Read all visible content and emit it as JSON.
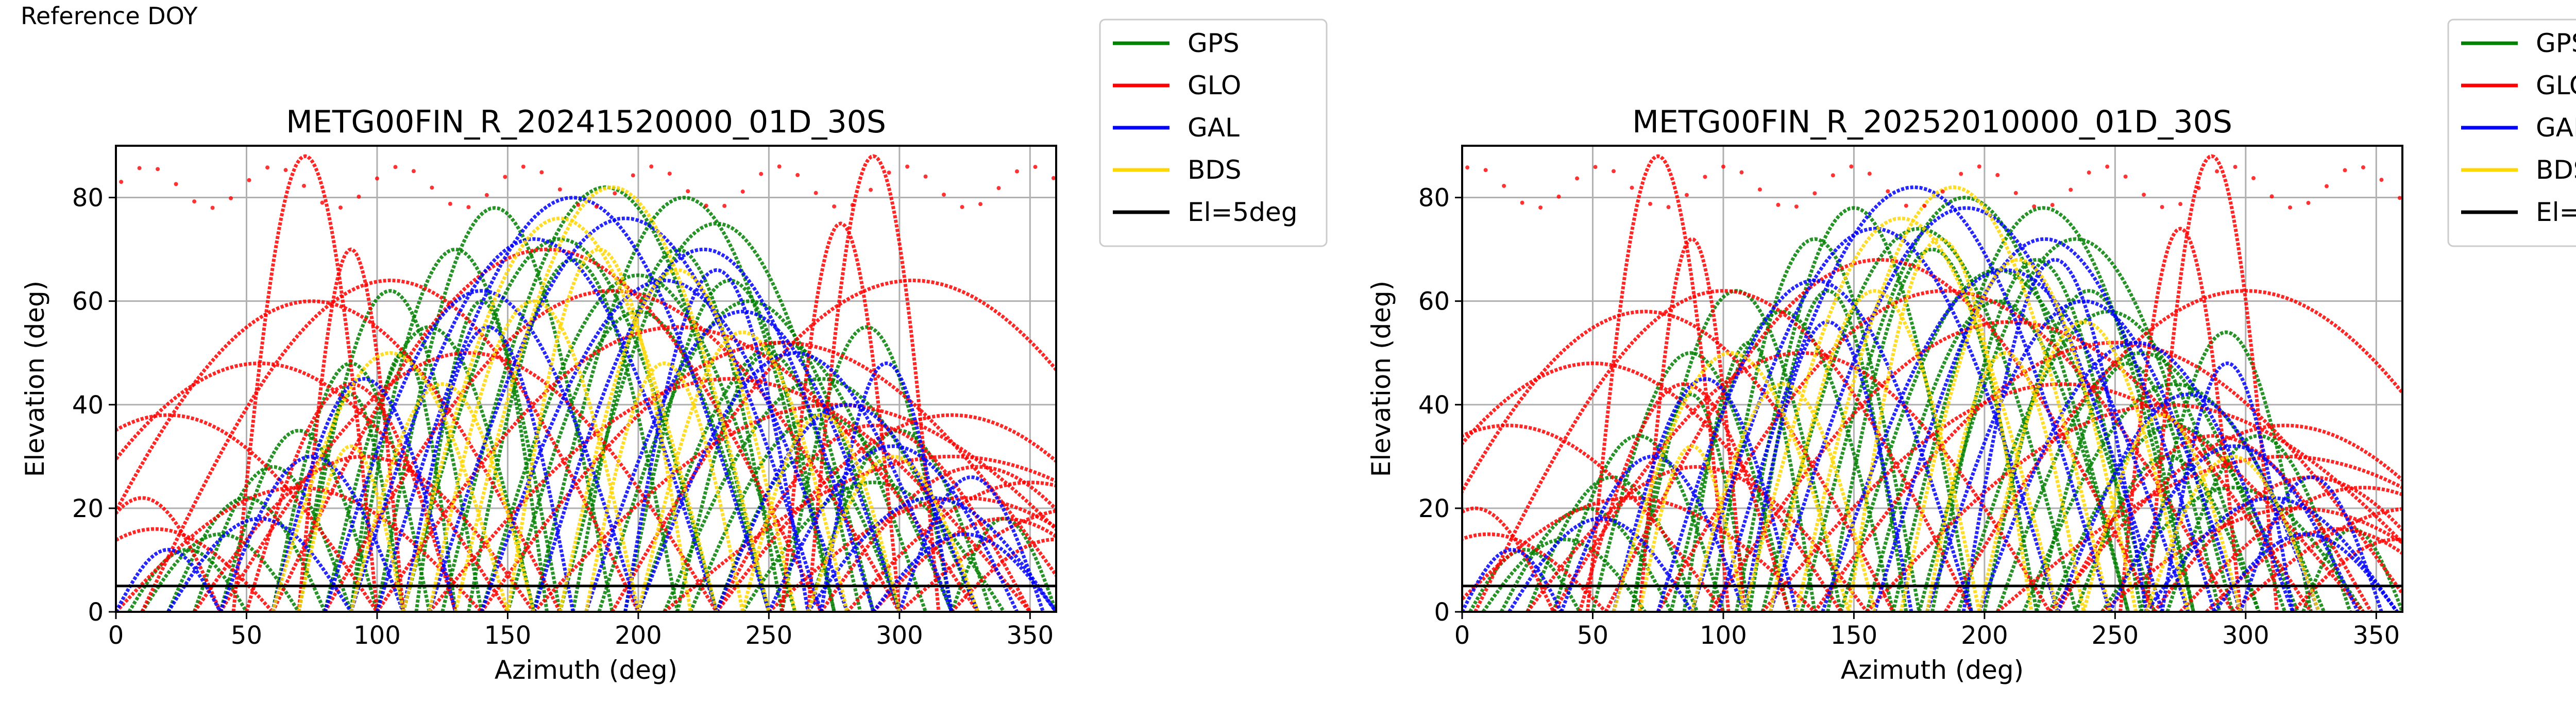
{
  "header": {
    "text": "Reference DOY"
  },
  "legend": {
    "entries": [
      {
        "label": "GPS",
        "color": "#008000"
      },
      {
        "label": "GLO",
        "color": "#ff0000"
      },
      {
        "label": "GAL",
        "color": "#0000ff"
      },
      {
        "label": "BDS",
        "color": "#ffd700"
      },
      {
        "label": "El=5deg",
        "color": "#000000"
      }
    ]
  },
  "chart_data": [
    {
      "type": "scatter",
      "title": "METG00FIN_R_20241520000_01D_30S",
      "xlabel": "Azimuth (deg)",
      "ylabel": "Elevation (deg)",
      "xlim": [
        0,
        360
      ],
      "ylim": [
        0,
        90
      ],
      "xticks": [
        "0",
        "50",
        "100",
        "150",
        "200",
        "250",
        "300",
        "350"
      ],
      "yticks": [
        "0",
        "20",
        "40",
        "60",
        "80"
      ],
      "grid": true,
      "legend_position": "outside-top-right",
      "reference_line": {
        "label": "El=5deg",
        "y": 5
      },
      "series": [
        {
          "name": "GPS",
          "color": "#008000",
          "arcs": [
            [
              60,
              120,
              48
            ],
            [
              70,
              140,
              62
            ],
            [
              80,
              160,
              55
            ],
            [
              90,
              170,
              70
            ],
            [
              100,
              190,
              78
            ],
            [
              110,
              230,
              72
            ],
            [
              125,
              250,
              82
            ],
            [
              140,
              260,
              65
            ],
            [
              150,
              250,
              58
            ],
            [
              160,
              275,
              80
            ],
            [
              170,
              290,
              75
            ],
            [
              185,
              300,
              60
            ],
            [
              200,
              310,
              52
            ],
            [
              210,
              330,
              45
            ],
            [
              220,
              320,
              38
            ],
            [
              230,
              300,
              30
            ],
            [
              240,
              340,
              25
            ],
            [
              40,
              100,
              35
            ],
            [
              30,
              90,
              28
            ],
            [
              20,
              80,
              22
            ],
            [
              10,
              70,
              15
            ],
            [
              255,
              320,
              55
            ],
            [
              265,
              335,
              35
            ],
            [
              70,
              110,
              42
            ],
            [
              90,
              130,
              50
            ],
            [
              115,
              165,
              60
            ],
            [
              135,
              215,
              68
            ],
            [
              175,
              255,
              70
            ],
            [
              195,
              275,
              64
            ],
            [
              215,
              285,
              50
            ],
            [
              5,
              50,
              12
            ],
            [
              320,
              360,
              18
            ]
          ]
        },
        {
          "name": "GLO",
          "color": "#ff0000",
          "arcs": [
            [
              -60,
              100,
              38
            ],
            [
              -40,
              150,
              48
            ],
            [
              -20,
              170,
              60
            ],
            [
              0,
              140,
              24
            ],
            [
              10,
              200,
              64
            ],
            [
              30,
              160,
              30
            ],
            [
              40,
              230,
              50
            ],
            [
              60,
              270,
              70
            ],
            [
              80,
              300,
              62
            ],
            [
              100,
              330,
              55
            ],
            [
              120,
              350,
              45
            ],
            [
              140,
              370,
              52
            ],
            [
              160,
              390,
              40
            ],
            [
              190,
              420,
              64
            ],
            [
              210,
              430,
              30
            ],
            [
              230,
              410,
              38
            ],
            [
              250,
              400,
              22
            ],
            [
              270,
              390,
              28
            ],
            [
              290,
              390,
              18
            ],
            [
              280,
              420,
              25
            ],
            [
              300,
              440,
              20
            ],
            [
              45,
              100,
              88
            ],
            [
              265,
              315,
              88
            ],
            [
              -20,
              40,
              22
            ],
            [
              50,
              130,
              44
            ],
            [
              70,
              110,
              70
            ],
            [
              255,
              300,
              75
            ],
            [
              230,
              350,
              36
            ],
            [
              320,
              400,
              14
            ],
            [
              -30,
              60,
              16
            ]
          ]
        },
        {
          "name": "GAL",
          "color": "#0000ff",
          "arcs": [
            [
              80,
              200,
              62
            ],
            [
              90,
              230,
              72
            ],
            [
              100,
              250,
              80
            ],
            [
              120,
              270,
              76
            ],
            [
              140,
              280,
              64
            ],
            [
              160,
              290,
              70
            ],
            [
              180,
              300,
              58
            ],
            [
              200,
              320,
              50
            ],
            [
              230,
              330,
              40
            ],
            [
              250,
              345,
              32
            ],
            [
              265,
              360,
              22
            ],
            [
              290,
              360,
              15
            ],
            [
              40,
              110,
              30
            ],
            [
              20,
              90,
              18
            ],
            [
              60,
              130,
              45
            ],
            [
              110,
              175,
              55
            ],
            [
              195,
              265,
              66
            ],
            [
              270,
              320,
              48
            ],
            [
              300,
              355,
              26
            ],
            [
              0,
              40,
              12
            ]
          ]
        },
        {
          "name": "BDS",
          "color": "#ffd700",
          "arcs": [
            [
              110,
              230,
              76
            ],
            [
              130,
              250,
              82
            ],
            [
              150,
              220,
              70
            ],
            [
              170,
              260,
              66
            ],
            [
              60,
              150,
              50
            ],
            [
              200,
              280,
              54
            ],
            [
              90,
              160,
              44
            ],
            [
              240,
              300,
              38
            ],
            [
              120,
              200,
              60
            ],
            [
              180,
              240,
              48
            ],
            [
              265,
              330,
              30
            ],
            [
              70,
              110,
              32
            ]
          ]
        }
      ]
    },
    {
      "type": "scatter",
      "title": "METG00FIN_R_20252010000_01D_30S",
      "xlabel": "Azimuth (deg)",
      "ylabel": "Elevation (deg)",
      "xlim": [
        0,
        360
      ],
      "ylim": [
        0,
        90
      ],
      "xticks": [
        "0",
        "50",
        "100",
        "150",
        "200",
        "250",
        "300",
        "350"
      ],
      "yticks": [
        "0",
        "20",
        "40",
        "60",
        "80"
      ],
      "grid": true,
      "legend_position": "outside-top-right",
      "reference_line": {
        "label": "El=5deg",
        "y": 5
      },
      "series": [
        {
          "name": "GPS",
          "color": "#008000",
          "arcs": [
            [
              50,
              125,
              50
            ],
            [
              65,
              145,
              62
            ],
            [
              80,
              165,
              58
            ],
            [
              95,
              175,
              72
            ],
            [
              105,
              195,
              78
            ],
            [
              115,
              235,
              74
            ],
            [
              130,
              255,
              80
            ],
            [
              145,
              265,
              66
            ],
            [
              155,
              255,
              60
            ],
            [
              165,
              280,
              78
            ],
            [
              175,
              295,
              72
            ],
            [
              190,
              305,
              58
            ],
            [
              205,
              315,
              50
            ],
            [
              215,
              330,
              44
            ],
            [
              225,
              320,
              36
            ],
            [
              235,
              305,
              30
            ],
            [
              245,
              345,
              24
            ],
            [
              35,
              100,
              34
            ],
            [
              25,
              90,
              26
            ],
            [
              15,
              80,
              20
            ],
            [
              8,
              70,
              14
            ],
            [
              260,
              325,
              54
            ],
            [
              270,
              340,
              34
            ],
            [
              65,
              110,
              42
            ],
            [
              85,
              135,
              52
            ],
            [
              110,
              170,
              62
            ],
            [
              140,
              220,
              70
            ],
            [
              180,
              260,
              68
            ],
            [
              200,
              280,
              62
            ],
            [
              220,
              290,
              48
            ],
            [
              3,
              45,
              12
            ],
            [
              322,
              360,
              16
            ]
          ]
        },
        {
          "name": "GLO",
          "color": "#ff0000",
          "arcs": [
            [
              -65,
              100,
              36
            ],
            [
              -45,
              145,
              48
            ],
            [
              -25,
              165,
              58
            ],
            [
              -5,
              135,
              22
            ],
            [
              5,
              195,
              62
            ],
            [
              25,
              155,
              28
            ],
            [
              35,
              225,
              50
            ],
            [
              55,
              265,
              68
            ],
            [
              75,
              295,
              62
            ],
            [
              95,
              325,
              56
            ],
            [
              115,
              345,
              44
            ],
            [
              135,
              365,
              52
            ],
            [
              155,
              385,
              40
            ],
            [
              185,
              415,
              62
            ],
            [
              205,
              425,
              30
            ],
            [
              225,
              405,
              36
            ],
            [
              245,
              395,
              20
            ],
            [
              265,
              385,
              26
            ],
            [
              285,
              385,
              16
            ],
            [
              275,
              415,
              24
            ],
            [
              295,
              435,
              20
            ],
            [
              48,
              102,
              88
            ],
            [
              262,
              312,
              88
            ],
            [
              -25,
              35,
              20
            ],
            [
              45,
              125,
              44
            ],
            [
              68,
              108,
              72
            ],
            [
              252,
              298,
              74
            ],
            [
              228,
              348,
              34
            ],
            [
              318,
              398,
              14
            ],
            [
              -35,
              55,
              15
            ]
          ]
        },
        {
          "name": "GAL",
          "color": "#0000ff",
          "arcs": [
            [
              75,
              195,
              64
            ],
            [
              88,
              228,
              74
            ],
            [
              98,
              248,
              82
            ],
            [
              118,
              268,
              78
            ],
            [
              138,
              278,
              66
            ],
            [
              158,
              288,
              72
            ],
            [
              178,
              298,
              60
            ],
            [
              198,
              318,
              52
            ],
            [
              228,
              328,
              42
            ],
            [
              248,
              343,
              32
            ],
            [
              262,
              358,
              22
            ],
            [
              288,
              358,
              15
            ],
            [
              38,
              108,
              30
            ],
            [
              18,
              88,
              18
            ],
            [
              58,
              128,
              45
            ],
            [
              108,
              172,
              56
            ],
            [
              192,
              262,
              68
            ],
            [
              268,
              318,
              48
            ],
            [
              298,
              352,
              26
            ],
            [
              0,
              38,
              12
            ]
          ]
        },
        {
          "name": "BDS",
          "color": "#ffd700",
          "arcs": [
            [
              108,
              228,
              76
            ],
            [
              128,
              248,
              82
            ],
            [
              148,
              218,
              72
            ],
            [
              168,
              258,
              68
            ],
            [
              58,
              148,
              50
            ],
            [
              198,
              278,
              56
            ],
            [
              88,
              158,
              44
            ],
            [
              238,
              298,
              38
            ],
            [
              118,
              198,
              62
            ],
            [
              178,
              238,
              50
            ],
            [
              262,
              328,
              30
            ],
            [
              68,
              108,
              32
            ]
          ]
        }
      ]
    }
  ]
}
